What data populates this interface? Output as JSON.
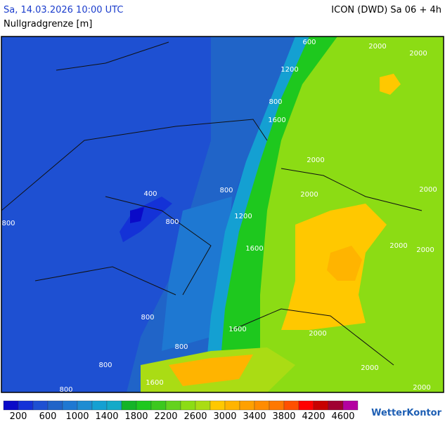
{
  "header": {
    "datetime": "Sa, 14.03.2026 10:00 UTC",
    "model": "ICON (DWD) Sa 06 + 4h",
    "parameter": "Nullgradgrenze [m]"
  },
  "map": {
    "contour_labels": [
      "600",
      "2000",
      "2000",
      "1200",
      "800",
      "1600",
      "2000",
      "2000",
      "2000",
      "800",
      "400",
      "800",
      "1200",
      "800",
      "1600",
      "2000",
      "2000",
      "800",
      "1600",
      "2000",
      "800",
      "800",
      "2000",
      "800",
      "1600",
      "2000"
    ]
  },
  "legend": {
    "colors": [
      "#0a0ac8",
      "#1432d7",
      "#1e50d2",
      "#2064c8",
      "#1e78d2",
      "#1e8cd2",
      "#14a0d2",
      "#14aac8",
      "#14b428",
      "#1ec81e",
      "#3cc81e",
      "#64d21e",
      "#8cdc14",
      "#aadc14",
      "#ffc800",
      "#ffb400",
      "#ffa000",
      "#ff8c00",
      "#ff7800",
      "#ff5000",
      "#ff0000",
      "#c80000",
      "#a00032",
      "#b400a0"
    ],
    "labels": [
      200,
      600,
      1000,
      1400,
      1800,
      2200,
      2600,
      3000,
      3400,
      3800,
      4200,
      4600
    ]
  },
  "logo": "WetterKontor"
}
